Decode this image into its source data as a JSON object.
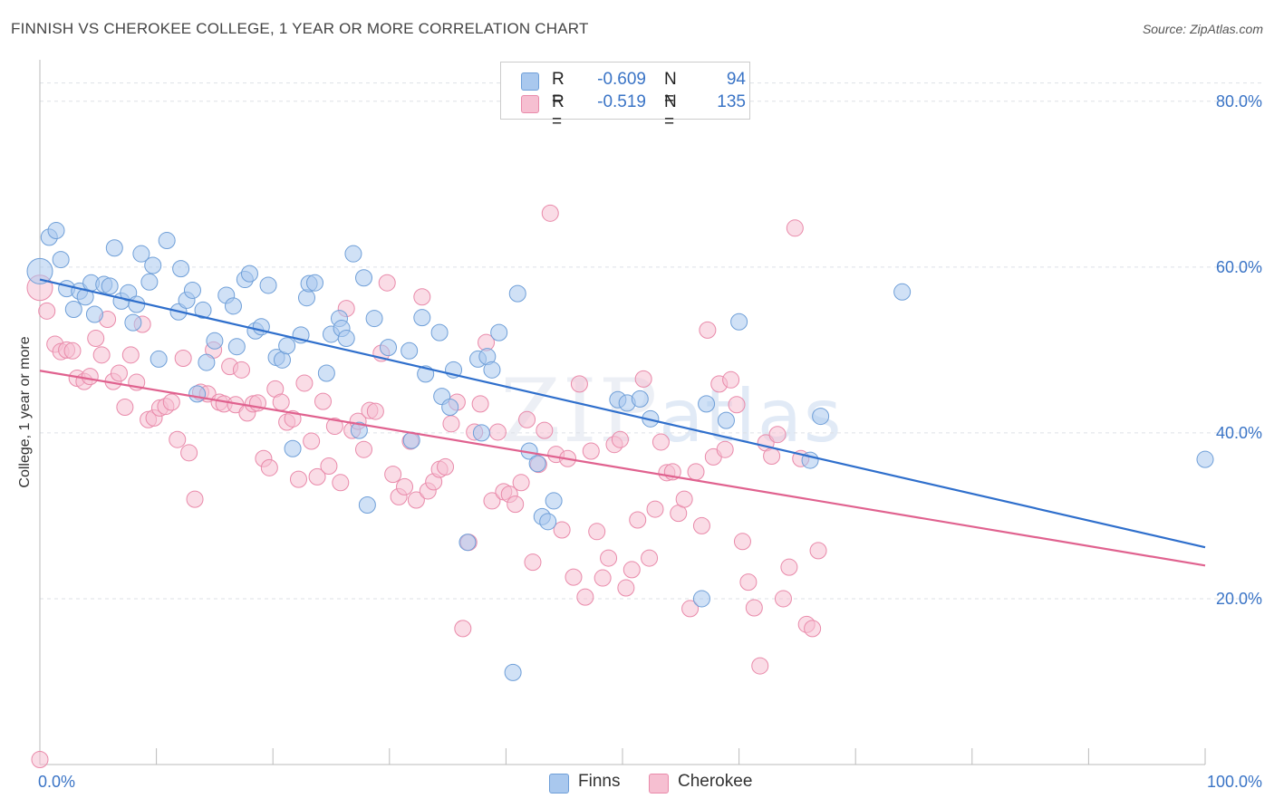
{
  "title": "FINNISH VS CHEROKEE COLLEGE, 1 YEAR OR MORE CORRELATION CHART",
  "source": "Source: ZipAtlas.com",
  "watermark": {
    "zip": "ZIP",
    "atlas": "atlas"
  },
  "colors": {
    "finns_fill": "#a9c8ee",
    "finns_stroke": "#6f9fd8",
    "finns_line": "#2f6fcc",
    "cherokee_fill": "#f6bfd1",
    "cherokee_stroke": "#e98aaa",
    "cherokee_line": "#e0628f",
    "grid": "#dde1e6",
    "axis": "#bbbbbb"
  },
  "legend": {
    "finns": {
      "r_label": "R =",
      "r_value": "-0.609",
      "n_label": "N =",
      "n_value": "94"
    },
    "cherokee": {
      "r_label": "R =",
      "r_value": "-0.519",
      "n_label": "N =",
      "n_value": "135"
    }
  },
  "chart_data": {
    "type": "scatter",
    "ylabel": "College, 1 year or more",
    "xlim": [
      0,
      100
    ],
    "ylim": [
      0,
      85
    ],
    "x_ticks": [
      "0.0%",
      "100.0%"
    ],
    "y_ticks": [
      {
        "value": 20,
        "label": "20.0%"
      },
      {
        "value": 40,
        "label": "40.0%"
      },
      {
        "value": 60,
        "label": "60.0%"
      },
      {
        "value": 80,
        "label": "80.0%"
      }
    ],
    "grid": true,
    "legend_position": "bottom-center",
    "series": [
      {
        "name": "Finns",
        "trend": {
          "x": [
            0,
            100
          ],
          "y": [
            58.5,
            26.2
          ]
        },
        "points": [
          [
            0,
            59.5
          ],
          [
            0.8,
            63.6
          ],
          [
            1.4,
            64.4
          ],
          [
            1.8,
            60.9
          ],
          [
            2.3,
            57.4
          ],
          [
            2.9,
            54.9
          ],
          [
            3.4,
            57.1
          ],
          [
            3.9,
            56.4
          ],
          [
            4.4,
            58.1
          ],
          [
            4.7,
            54.3
          ],
          [
            5.5,
            57.9
          ],
          [
            6.0,
            57.7
          ],
          [
            6.4,
            62.3
          ],
          [
            7.0,
            55.9
          ],
          [
            7.6,
            56.9
          ],
          [
            8.0,
            53.3
          ],
          [
            8.3,
            55.5
          ],
          [
            8.7,
            61.6
          ],
          [
            9.4,
            58.2
          ],
          [
            9.7,
            60.2
          ],
          [
            10.2,
            48.9
          ],
          [
            10.9,
            63.2
          ],
          [
            11.9,
            54.6
          ],
          [
            12.1,
            59.8
          ],
          [
            12.6,
            56.0
          ],
          [
            13.1,
            57.2
          ],
          [
            13.5,
            44.7
          ],
          [
            14.0,
            54.8
          ],
          [
            14.3,
            48.5
          ],
          [
            15.0,
            51.1
          ],
          [
            16.0,
            56.6
          ],
          [
            16.6,
            55.3
          ],
          [
            16.9,
            50.4
          ],
          [
            17.6,
            58.5
          ],
          [
            18.0,
            59.2
          ],
          [
            18.5,
            52.3
          ],
          [
            19.0,
            52.8
          ],
          [
            19.6,
            57.8
          ],
          [
            20.3,
            49.1
          ],
          [
            20.8,
            48.8
          ],
          [
            21.2,
            50.5
          ],
          [
            21.7,
            38.1
          ],
          [
            22.4,
            51.8
          ],
          [
            22.9,
            56.3
          ],
          [
            23.1,
            58.0
          ],
          [
            23.6,
            58.1
          ],
          [
            24.6,
            47.2
          ],
          [
            25.0,
            51.9
          ],
          [
            25.7,
            53.8
          ],
          [
            25.9,
            52.6
          ],
          [
            26.3,
            51.4
          ],
          [
            26.9,
            61.6
          ],
          [
            27.4,
            40.3
          ],
          [
            27.8,
            58.7
          ],
          [
            28.1,
            31.3
          ],
          [
            28.7,
            53.8
          ],
          [
            29.9,
            50.3
          ],
          [
            31.7,
            49.9
          ],
          [
            31.9,
            39.1
          ],
          [
            32.8,
            53.9
          ],
          [
            33.1,
            47.1
          ],
          [
            34.3,
            52.1
          ],
          [
            34.5,
            44.4
          ],
          [
            35.2,
            43.1
          ],
          [
            35.5,
            47.6
          ],
          [
            36.7,
            26.8
          ],
          [
            37.6,
            48.9
          ],
          [
            37.9,
            40.0
          ],
          [
            38.4,
            49.2
          ],
          [
            38.8,
            47.6
          ],
          [
            39.4,
            52.1
          ],
          [
            40.6,
            11.1
          ],
          [
            41.0,
            56.8
          ],
          [
            42.0,
            37.8
          ],
          [
            42.7,
            36.3
          ],
          [
            43.1,
            29.9
          ],
          [
            43.6,
            29.3
          ],
          [
            44.1,
            31.8
          ],
          [
            49.6,
            44.0
          ],
          [
            50.4,
            43.6
          ],
          [
            51.5,
            44.1
          ],
          [
            52.4,
            41.7
          ],
          [
            57.2,
            43.5
          ],
          [
            56.8,
            20.0
          ],
          [
            58.9,
            41.5
          ],
          [
            60.0,
            53.4
          ],
          [
            66.1,
            36.7
          ],
          [
            67.0,
            42.0
          ],
          [
            74.0,
            57.0
          ],
          [
            100.0,
            36.8
          ]
        ]
      },
      {
        "name": "Cherokee",
        "trend": {
          "x": [
            0,
            100
          ],
          "y": [
            47.5,
            24.0
          ]
        },
        "points": [
          [
            0,
            57.5
          ],
          [
            0.6,
            54.7
          ],
          [
            1.3,
            50.7
          ],
          [
            1.8,
            49.8
          ],
          [
            2.3,
            50.0
          ],
          [
            2.8,
            49.9
          ],
          [
            3.2,
            46.6
          ],
          [
            3.8,
            46.2
          ],
          [
            4.3,
            46.8
          ],
          [
            4.8,
            51.4
          ],
          [
            5.3,
            49.4
          ],
          [
            5.8,
            53.7
          ],
          [
            6.3,
            46.2
          ],
          [
            6.8,
            47.2
          ],
          [
            7.3,
            43.1
          ],
          [
            7.8,
            49.4
          ],
          [
            8.3,
            46.1
          ],
          [
            8.8,
            53.1
          ],
          [
            9.3,
            41.6
          ],
          [
            9.8,
            41.8
          ],
          [
            10.3,
            43.0
          ],
          [
            10.8,
            43.2
          ],
          [
            11.3,
            43.7
          ],
          [
            11.8,
            39.2
          ],
          [
            12.3,
            49.0
          ],
          [
            12.8,
            37.6
          ],
          [
            13.3,
            32.0
          ],
          [
            13.8,
            44.9
          ],
          [
            14.4,
            44.7
          ],
          [
            14.9,
            50.0
          ],
          [
            15.4,
            43.7
          ],
          [
            15.8,
            43.5
          ],
          [
            16.3,
            48.0
          ],
          [
            16.8,
            43.4
          ],
          [
            17.3,
            47.6
          ],
          [
            17.8,
            42.4
          ],
          [
            18.3,
            43.5
          ],
          [
            18.7,
            43.6
          ],
          [
            19.2,
            36.9
          ],
          [
            19.7,
            35.8
          ],
          [
            20.2,
            45.3
          ],
          [
            20.7,
            43.7
          ],
          [
            21.2,
            41.3
          ],
          [
            21.7,
            41.7
          ],
          [
            22.2,
            34.4
          ],
          [
            22.7,
            46.0
          ],
          [
            23.3,
            39.0
          ],
          [
            23.8,
            34.7
          ],
          [
            24.3,
            43.8
          ],
          [
            24.8,
            36.0
          ],
          [
            25.3,
            40.8
          ],
          [
            25.8,
            34.0
          ],
          [
            26.3,
            55.0
          ],
          [
            26.8,
            40.3
          ],
          [
            27.3,
            41.4
          ],
          [
            27.8,
            38.0
          ],
          [
            28.3,
            42.7
          ],
          [
            28.8,
            42.6
          ],
          [
            29.3,
            49.6
          ],
          [
            29.8,
            58.1
          ],
          [
            30.3,
            35.0
          ],
          [
            30.8,
            32.3
          ],
          [
            31.3,
            33.5
          ],
          [
            31.8,
            39.0
          ],
          [
            32.3,
            31.9
          ],
          [
            32.8,
            56.4
          ],
          [
            33.3,
            33.0
          ],
          [
            33.8,
            34.1
          ],
          [
            34.3,
            35.6
          ],
          [
            34.8,
            35.9
          ],
          [
            35.3,
            41.1
          ],
          [
            35.8,
            43.7
          ],
          [
            36.3,
            16.4
          ],
          [
            36.8,
            26.8
          ],
          [
            37.3,
            40.1
          ],
          [
            37.8,
            43.5
          ],
          [
            38.3,
            50.9
          ],
          [
            38.8,
            31.8
          ],
          [
            39.3,
            40.1
          ],
          [
            39.8,
            32.9
          ],
          [
            40.3,
            32.6
          ],
          [
            40.8,
            31.4
          ],
          [
            41.3,
            34.0
          ],
          [
            41.8,
            41.6
          ],
          [
            42.3,
            24.4
          ],
          [
            42.8,
            36.2
          ],
          [
            43.3,
            40.3
          ],
          [
            43.8,
            66.5
          ],
          [
            44.3,
            37.4
          ],
          [
            44.8,
            28.3
          ],
          [
            45.3,
            36.9
          ],
          [
            45.8,
            22.6
          ],
          [
            46.3,
            45.9
          ],
          [
            46.8,
            20.2
          ],
          [
            47.3,
            37.8
          ],
          [
            47.8,
            28.1
          ],
          [
            48.3,
            22.5
          ],
          [
            48.8,
            24.9
          ],
          [
            49.3,
            38.6
          ],
          [
            49.8,
            39.2
          ],
          [
            50.3,
            21.3
          ],
          [
            50.8,
            23.5
          ],
          [
            51.3,
            29.5
          ],
          [
            51.8,
            46.5
          ],
          [
            52.3,
            24.9
          ],
          [
            52.8,
            30.8
          ],
          [
            53.3,
            38.9
          ],
          [
            53.8,
            35.2
          ],
          [
            54.3,
            35.3
          ],
          [
            54.8,
            30.3
          ],
          [
            55.3,
            32.0
          ],
          [
            55.8,
            18.8
          ],
          [
            56.3,
            35.3
          ],
          [
            56.8,
            28.8
          ],
          [
            57.3,
            52.4
          ],
          [
            57.8,
            37.1
          ],
          [
            58.3,
            45.9
          ],
          [
            58.8,
            38.0
          ],
          [
            59.3,
            46.4
          ],
          [
            59.8,
            43.4
          ],
          [
            60.3,
            26.9
          ],
          [
            60.8,
            22.0
          ],
          [
            61.3,
            18.9
          ],
          [
            61.8,
            11.9
          ],
          [
            62.3,
            38.8
          ],
          [
            62.8,
            37.2
          ],
          [
            63.3,
            39.8
          ],
          [
            63.8,
            20.0
          ],
          [
            64.3,
            23.8
          ],
          [
            64.8,
            64.7
          ],
          [
            65.3,
            36.9
          ],
          [
            65.8,
            16.9
          ],
          [
            66.3,
            16.4
          ],
          [
            66.8,
            25.8
          ],
          [
            0,
            0.6
          ]
        ]
      }
    ]
  },
  "bottom_legend": [
    {
      "label": "Finns"
    },
    {
      "label": "Cherokee"
    }
  ]
}
